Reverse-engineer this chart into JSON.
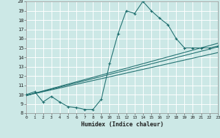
{
  "title": "",
  "xlabel": "Humidex (Indice chaleur)",
  "xlim": [
    0,
    23
  ],
  "ylim": [
    8,
    20
  ],
  "xticks": [
    0,
    1,
    2,
    3,
    4,
    5,
    6,
    7,
    8,
    9,
    10,
    11,
    12,
    13,
    14,
    15,
    16,
    17,
    18,
    19,
    20,
    21,
    22,
    23
  ],
  "yticks": [
    8,
    9,
    10,
    11,
    12,
    13,
    14,
    15,
    16,
    17,
    18,
    19,
    20
  ],
  "bg_color": "#cce8e6",
  "line_color": "#1e6e6e",
  "grid_color": "#ffffff",
  "curve1_x": [
    0,
    1,
    2,
    3,
    4,
    5,
    6,
    7,
    8,
    9,
    10,
    11,
    12,
    13,
    14,
    15,
    16,
    17,
    18,
    19,
    20,
    21,
    22,
    23
  ],
  "curve1_y": [
    10.0,
    10.3,
    9.2,
    9.8,
    9.2,
    8.7,
    8.6,
    8.4,
    8.4,
    9.5,
    13.3,
    16.5,
    19.0,
    18.7,
    20.0,
    19.0,
    18.2,
    17.5,
    16.0,
    15.0,
    15.0,
    15.0,
    15.0,
    15.2
  ],
  "line1_x": [
    0,
    23
  ],
  "line1_y": [
    9.9,
    15.1
  ],
  "line2_x": [
    0,
    23
  ],
  "line2_y": [
    9.9,
    14.5
  ],
  "line3_x": [
    0,
    23
  ],
  "line3_y": [
    9.9,
    15.5
  ]
}
